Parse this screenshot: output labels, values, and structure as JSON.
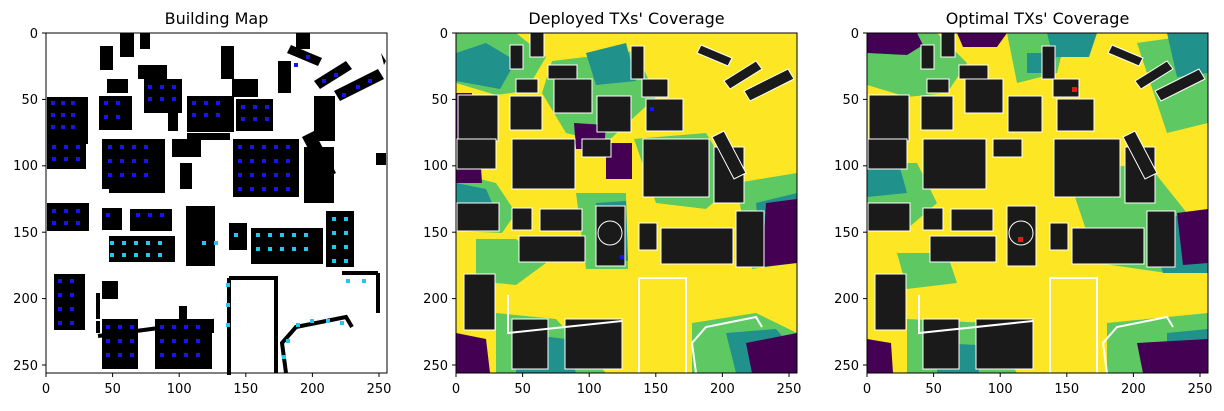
{
  "panels": [
    {
      "title": "Building Map",
      "x_ticks": [
        "0",
        "50",
        "100",
        "150",
        "200",
        "250"
      ],
      "y_ticks": [
        "0",
        "50",
        "100",
        "150",
        "200",
        "250"
      ]
    },
    {
      "title": "Deployed TXs' Coverage",
      "x_ticks": [
        "0",
        "50",
        "100",
        "150",
        "200",
        "250"
      ],
      "y_ticks": [
        "0",
        "50",
        "100",
        "150",
        "200",
        "250"
      ]
    },
    {
      "title": "Optimal TXs' Coverage",
      "x_ticks": [
        "0",
        "50",
        "100",
        "150",
        "200",
        "250"
      ],
      "y_ticks": [
        "0",
        "50",
        "100",
        "150",
        "200",
        "250"
      ]
    }
  ],
  "colors": {
    "building": "#000000",
    "rx_point_blue": "#1515ee",
    "rx_point_cyan": "#22c8ee",
    "coverage_high": "#fde725",
    "coverage_mid_high": "#5ec962",
    "coverage_mid": "#21918c",
    "coverage_low": "#440154",
    "coverage_building": "#1a1a1a",
    "deployed_tx": "#1515ee",
    "optimal_tx": "#ee1515"
  }
}
